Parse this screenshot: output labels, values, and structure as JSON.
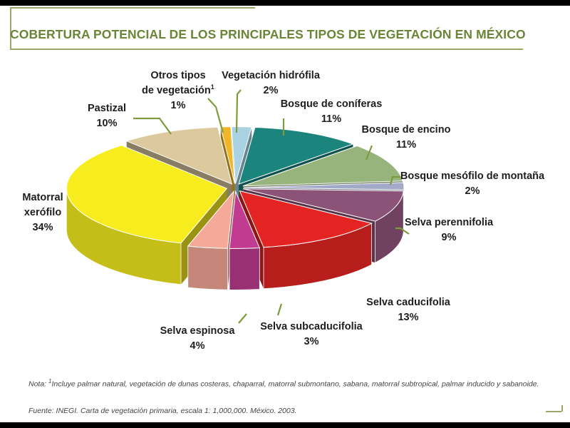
{
  "title": "COBERTURA POTENCIAL DE LOS PRINCIPALES TIPOS DE VEGETACIÓN EN MÉXICO",
  "chart_data": {
    "type": "pie",
    "title": "COBERTURA POTENCIAL DE LOS PRINCIPALES TIPOS DE VEGETACIÓN EN MÉXICO",
    "unit": "%",
    "slices": [
      {
        "label": "Otros tipos de vegetación",
        "superscript": "1",
        "value": 1,
        "value_label": "1%",
        "color": "#f1b628"
      },
      {
        "label": "Vegetación hidrófila",
        "value": 2,
        "value_label": "2%",
        "color": "#a9d3e2"
      },
      {
        "label": "Bosque de coníferas",
        "value": 11,
        "value_label": "11%",
        "color": "#1b857d"
      },
      {
        "label": "Bosque de encino",
        "value": 11,
        "value_label": "11%",
        "color": "#97b47c"
      },
      {
        "label": "Bosque mesófilo de montaña",
        "value": 2,
        "value_label": "2%",
        "color": "#a3a9c9"
      },
      {
        "label": "Selva perennifolia",
        "value": 9,
        "value_label": "9%",
        "color": "#8c5378"
      },
      {
        "label": "Selva caducifolia",
        "value": 13,
        "value_label": "13%",
        "color": "#e42422"
      },
      {
        "label": "Selva subcaducifolia",
        "value": 3,
        "value_label": "3%",
        "color": "#c13c91"
      },
      {
        "label": "Selva espinosa",
        "value": 4,
        "value_label": "4%",
        "color": "#f5a999"
      },
      {
        "label": "Matorral xerófilo",
        "value": 34,
        "value_label": "34%",
        "color": "#f6ec1e"
      },
      {
        "label": "Pastizal",
        "value": 10,
        "value_label": "10%",
        "color": "#dcca9e"
      }
    ],
    "legend": "none",
    "style": "3d-exploded-pie"
  },
  "note": {
    "prefix": "Nota:",
    "superscript": "1",
    "text": "Incluye palmar natural, vegetación de dunas costeras, chaparral, matorral submontano, sabana, matorral subtropical, palmar inducido y sabanoide."
  },
  "source": {
    "prefix": "Fuente: INEGI.",
    "italic": "Carta de vegetación primaria, escala 1: 1,000,000.",
    "suffix": "México. 2003."
  },
  "colors": {
    "accent": "#6a8535",
    "frame": "#9aa86a",
    "leader": "#7f9a3c"
  }
}
